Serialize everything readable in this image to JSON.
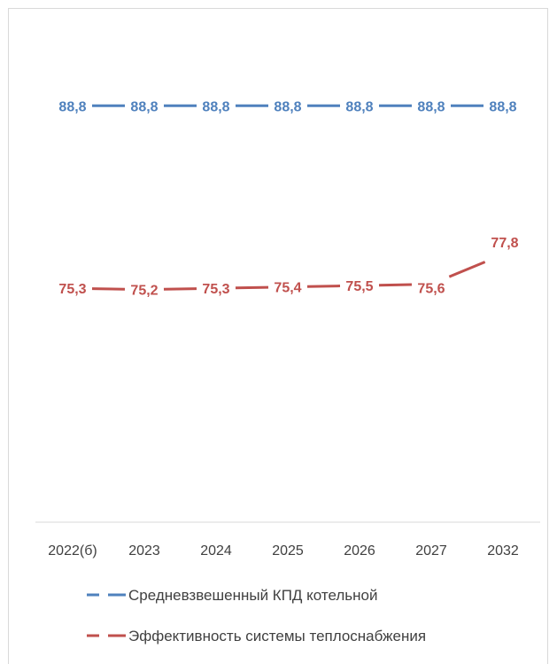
{
  "chart_data": {
    "type": "line",
    "title": "",
    "xlabel": "",
    "ylabel": "",
    "categories": [
      "2022(б)",
      "2023",
      "2024",
      "2025",
      "2026",
      "2027",
      "2032"
    ],
    "ylim": [
      58,
      94
    ],
    "grid": false,
    "legend_position": "bottom",
    "series": [
      {
        "name": "Средневзвешенный КПД котельной",
        "color": "#4f81bd",
        "values": [
          88.8,
          88.8,
          88.8,
          88.8,
          88.8,
          88.8,
          88.8
        ],
        "labels": [
          "88,8",
          "88,8",
          "88,8",
          "88,8",
          "88,8",
          "88,8",
          "88,8"
        ]
      },
      {
        "name": "Эффективность системы теплоснабжения",
        "color": "#c0504d",
        "values": [
          75.3,
          75.2,
          75.3,
          75.4,
          75.5,
          75.6,
          77.8
        ],
        "labels": [
          "75,3",
          "75,2",
          "75,3",
          "75,4",
          "75,5",
          "75,6",
          "77,8"
        ]
      }
    ]
  }
}
